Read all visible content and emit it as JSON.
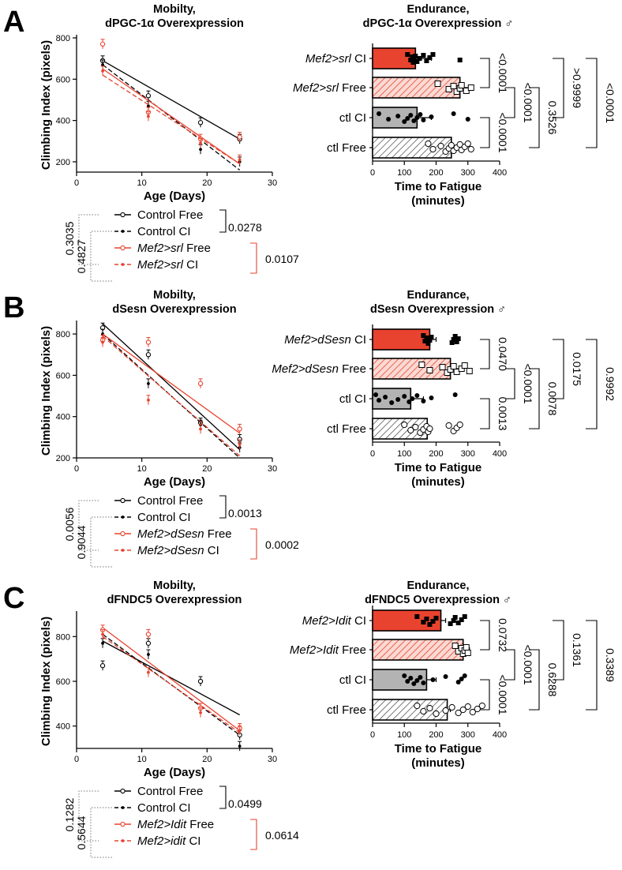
{
  "panels": [
    {
      "letter": "A",
      "mob_title": [
        "Mobilty,",
        "dPGC-1α Overexpression"
      ],
      "end_title": [
        "Endurance,",
        "dPGC-1α Overexpression ♂"
      ],
      "legend_pvals": {
        "outer": "0.3035",
        "inner": "0.4827",
        "ctl": "0.0278",
        "exp": "0.0107"
      },
      "legend": [
        {
          "ital": "",
          "rest": "Control Free"
        },
        {
          "ital": "",
          "rest": "Control CI"
        },
        {
          "ital": "Mef2>srl",
          "rest": " Free"
        },
        {
          "ital": "Mef2>srl",
          "rest": " CI"
        }
      ],
      "bar_labels": [
        {
          "ital": "Mef2>srl",
          "rest": " CI"
        },
        {
          "ital": "Mef2>srl",
          "rest": " Free"
        },
        {
          "ital": "",
          "rest": "ctl CI"
        },
        {
          "ital": "",
          "rest": "ctl Free"
        }
      ],
      "bar_pvals": [
        "<0.0001",
        "<0.0001",
        "<0.0001",
        "0.3526",
        ">0.9999",
        "<0.0001"
      ]
    },
    {
      "letter": "B",
      "mob_title": [
        "Mobilty,",
        "dSesn Overexpression"
      ],
      "end_title": [
        "Endurance,",
        "dSesn Overexpression ♂"
      ],
      "legend_pvals": {
        "outer": "0.0056",
        "inner": "0.9044",
        "ctl": "0.0013",
        "exp": "0.0002"
      },
      "legend": [
        {
          "ital": "",
          "rest": "Control Free"
        },
        {
          "ital": "",
          "rest": "Control CI"
        },
        {
          "ital": "Mef2>dSesn",
          "rest": " Free"
        },
        {
          "ital": "Mef2>dSesn",
          "rest": " CI"
        }
      ],
      "bar_labels": [
        {
          "ital": "Mef2>dSesn",
          "rest": " CI"
        },
        {
          "ital": "Mef2>dSesn",
          "rest": " Free"
        },
        {
          "ital": "",
          "rest": "ctl CI"
        },
        {
          "ital": "",
          "rest": "ctl Free"
        }
      ],
      "bar_pvals": [
        "0.0470",
        "<0.0001",
        "0.0013",
        "0.0078",
        "0.0175",
        "0.9992"
      ]
    },
    {
      "letter": "C",
      "mob_title": [
        "Mobilty,",
        "dFNDC5 Overexpression"
      ],
      "end_title": [
        "Endurance,",
        "dFNDC5 Overexpression ♂"
      ],
      "legend_pvals": {
        "outer": "0.1282",
        "inner": "0.5644",
        "ctl": "0.0499",
        "exp": "0.0614"
      },
      "legend": [
        {
          "ital": "",
          "rest": "Control Free"
        },
        {
          "ital": "",
          "rest": "Control CI"
        },
        {
          "ital": "Mef2>Idit",
          "rest": " Free"
        },
        {
          "ital": "Mef2>idit",
          "rest": " CI"
        }
      ],
      "bar_labels": [
        {
          "ital": "Mef2>Idit",
          "rest": " CI"
        },
        {
          "ital": "Mef2>Idit",
          "rest": " Free"
        },
        {
          "ital": "",
          "rest": "ctl CI"
        },
        {
          "ital": "",
          "rest": "ctl Free"
        }
      ],
      "bar_pvals": [
        "0.0732",
        "<0.0001",
        "<0.0001",
        "0.6288",
        "0.1361",
        "0.3389"
      ]
    }
  ],
  "chart_data": [
    {
      "type": "scatter",
      "title": "Mobilty, dPGC-1α Overexpression",
      "xlabel": "Age (Days)",
      "ylabel": "Climbing Index (pixels)",
      "xlim": [
        0,
        30
      ],
      "ylim": [
        150,
        800
      ],
      "xticks": [
        0,
        10,
        20,
        30
      ],
      "yticks": [
        200,
        400,
        600,
        800
      ],
      "x": [
        4,
        11,
        19,
        25
      ],
      "series": [
        {
          "name": "Control Free",
          "color": "#000000",
          "dash": "solid",
          "marker": "circle",
          "values": [
            690,
            520,
            390,
            310
          ],
          "fit": [
            690,
            310
          ]
        },
        {
          "name": "Control CI",
          "color": "#000000",
          "dash": "dash",
          "marker": "dot",
          "values": [
            670,
            470,
            260,
            200
          ],
          "fit": [
            670,
            160
          ]
        },
        {
          "name": "Mef2>srl Free",
          "color": "#e8432f",
          "dash": "solid",
          "marker": "circle",
          "values": [
            770,
            440,
            310,
            320
          ],
          "fit": [
            650,
            190
          ]
        },
        {
          "name": "Mef2>srl CI",
          "color": "#e8432f",
          "dash": "dash",
          "marker": "dot",
          "values": [
            640,
            420,
            290,
            210
          ],
          "fit": [
            620,
            190
          ]
        }
      ]
    },
    {
      "type": "bar",
      "title": "Endurance, dPGC-1α Overexpression ♂",
      "xlabel": "Time to Fatigue (minutes)",
      "xlim": [
        0,
        400
      ],
      "xticks": [
        0,
        100,
        200,
        300,
        400
      ],
      "categories": [
        "Mef2>srl CI",
        "Mef2>srl Free",
        "ctl CI",
        "ctl Free"
      ],
      "values": [
        135,
        275,
        140,
        248
      ],
      "errors": [
        50,
        40,
        45,
        10
      ],
      "fills": [
        "red",
        "redhatch",
        "gray",
        "grayhatch"
      ],
      "points": [
        [
          110,
          120,
          125,
          128,
          130,
          135,
          140,
          148,
          160,
          170,
          180,
          190,
          275
        ],
        [
          205,
          240,
          255,
          265,
          275,
          280,
          295,
          310
        ],
        [
          20,
          50,
          80,
          100,
          110,
          120,
          130,
          140,
          150,
          160,
          185,
          255,
          300
        ],
        [
          175,
          190,
          215,
          230,
          240,
          248,
          255,
          265,
          275,
          280,
          290,
          300,
          310
        ]
      ],
      "pvalues": [
        "<0.0001",
        "<0.0001",
        "<0.0001",
        "0.3526",
        ">0.9999",
        "<0.0001"
      ]
    },
    {
      "type": "scatter",
      "title": "Mobilty, dSesn Overexpression",
      "xlabel": "Age (Days)",
      "ylabel": "Climbing Index (pixels)",
      "xlim": [
        0,
        30
      ],
      "ylim": [
        200,
        850
      ],
      "xticks": [
        0,
        10,
        20,
        30
      ],
      "yticks": [
        200,
        400,
        600,
        800
      ],
      "x": [
        4,
        11,
        19,
        25
      ],
      "series": [
        {
          "name": "Control Free",
          "color": "#000000",
          "dash": "solid",
          "marker": "circle",
          "values": [
            830,
            700,
            370,
            290
          ],
          "fit": [
            850,
            240
          ]
        },
        {
          "name": "Control CI",
          "color": "#000000",
          "dash": "dash",
          "marker": "dot",
          "values": [
            800,
            560,
            360,
            250
          ],
          "fit": [
            800,
            200
          ]
        },
        {
          "name": "Mef2>dSesn Free",
          "color": "#e8432f",
          "dash": "solid",
          "marker": "circle",
          "values": [
            770,
            760,
            560,
            340
          ],
          "fit": [
            800,
            320
          ]
        },
        {
          "name": "Mef2>dSesn CI",
          "color": "#e8432f",
          "dash": "dash",
          "marker": "dot",
          "values": [
            760,
            480,
            340,
            265
          ],
          "fit": [
            790,
            210
          ]
        }
      ]
    },
    {
      "type": "bar",
      "title": "Endurance, dSesn Overexpression ♂",
      "xlabel": "Time to Fatigue (minutes)",
      "xlim": [
        0,
        400
      ],
      "xticks": [
        0,
        100,
        200,
        300,
        400
      ],
      "categories": [
        "Mef2>dSesn CI",
        "Mef2>dSesn Free",
        "ctl CI",
        "ctl Free"
      ],
      "values": [
        180,
        245,
        120,
        172
      ],
      "errors": [
        20,
        30,
        40,
        10
      ],
      "fills": [
        "red",
        "redhatch",
        "gray",
        "grayhatch"
      ],
      "points": [
        [
          160,
          165,
          170,
          175,
          180,
          185,
          250,
          255,
          260,
          265,
          270
        ],
        [
          155,
          180,
          220,
          235,
          245,
          255,
          265,
          280,
          290,
          305
        ],
        [
          10,
          20,
          40,
          60,
          80,
          100,
          115,
          125,
          140,
          160,
          185,
          260
        ],
        [
          100,
          120,
          135,
          150,
          160,
          170,
          175,
          180,
          240,
          255,
          265,
          275
        ]
      ],
      "pvalues": [
        "0.0470",
        "<0.0001",
        "0.0013",
        "0.0078",
        "0.0175",
        "0.9992"
      ]
    },
    {
      "type": "scatter",
      "title": "Mobilty, dFNDC5 Overexpression",
      "xlabel": "Age (Days)",
      "ylabel": "Climbing Index (pixels)",
      "xlim": [
        0,
        30
      ],
      "ylim": [
        300,
        900
      ],
      "xticks": [
        0,
        10,
        20,
        30
      ],
      "yticks": [
        400,
        600,
        800
      ],
      "x": [
        4,
        11,
        19,
        25
      ],
      "series": [
        {
          "name": "Control Free",
          "color": "#000000",
          "dash": "solid",
          "marker": "circle",
          "values": [
            670,
            770,
            600,
            360
          ],
          "fit": [
            780,
            450
          ]
        },
        {
          "name": "Control CI",
          "color": "#000000",
          "dash": "dash",
          "marker": "dot",
          "values": [
            770,
            720,
            480,
            310
          ],
          "fit": [
            810,
            360
          ]
        },
        {
          "name": "Mef2>Idit Free",
          "color": "#e8432f",
          "dash": "solid",
          "marker": "circle",
          "values": [
            830,
            810,
            480,
            390
          ],
          "fit": [
            840,
            380
          ]
        },
        {
          "name": "Mef2>idit CI",
          "color": "#e8432f",
          "dash": "dash",
          "marker": "dot",
          "values": [
            810,
            640,
            460,
            380
          ],
          "fit": [
            800,
            370
          ]
        }
      ]
    },
    {
      "type": "bar",
      "title": "Endurance, dFNDC5 Overexpression ♂",
      "xlabel": "Time to Fatigue (minutes)",
      "xlim": [
        0,
        400
      ],
      "xticks": [
        0,
        100,
        200,
        300,
        400
      ],
      "categories": [
        "Mef2>Idit CI",
        "Mef2>Idit Free",
        "ctl CI",
        "ctl Free"
      ],
      "values": [
        215,
        285,
        170,
        235
      ],
      "errors": [
        15,
        20,
        30,
        10
      ],
      "fills": [
        "red",
        "redhatch",
        "gray",
        "grayhatch"
      ],
      "points": [
        [
          140,
          160,
          170,
          180,
          190,
          200,
          245,
          255,
          260,
          270,
          280,
          290
        ],
        [
          260,
          270,
          280,
          285,
          290,
          295,
          300
        ],
        [
          100,
          110,
          120,
          130,
          140,
          150,
          160,
          190,
          230,
          270,
          280,
          290
        ],
        [
          140,
          160,
          180,
          200,
          230,
          250,
          270,
          285,
          300,
          315,
          330,
          345
        ]
      ],
      "pvalues": [
        "0.0732",
        "<0.0001",
        "<0.0001",
        "0.6288",
        "0.1361",
        "0.3389"
      ]
    }
  ]
}
